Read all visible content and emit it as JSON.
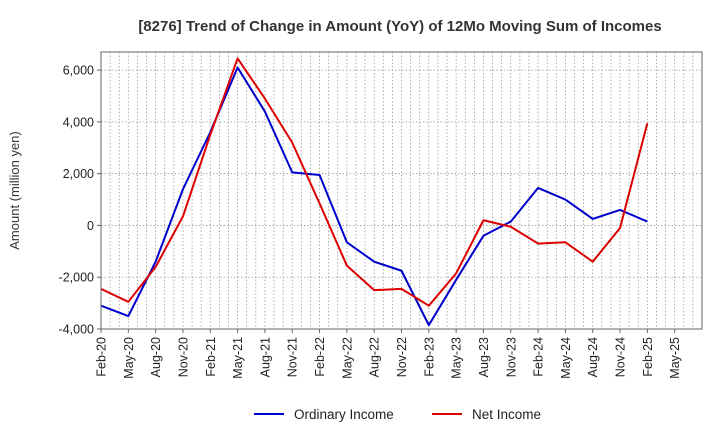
{
  "chart_data": {
    "type": "line",
    "title": "[8276]  Trend of Change in Amount (YoY) of 12Mo Moving Sum of Incomes",
    "xlabel": "",
    "ylabel": "Amount (million yen)",
    "ylim": [
      -4000,
      6700
    ],
    "yticks": [
      -4000,
      -2000,
      0,
      2000,
      4000,
      6000
    ],
    "ytick_labels": [
      "-4,000",
      "-2,000",
      "0",
      "2,000",
      "4,000",
      "6,000"
    ],
    "categories": [
      "Feb-20",
      "May-20",
      "Aug-20",
      "Nov-20",
      "Feb-21",
      "May-21",
      "Aug-21",
      "Nov-21",
      "Feb-22",
      "May-22",
      "Aug-22",
      "Nov-22",
      "Feb-23",
      "May-23",
      "Aug-23",
      "Nov-23",
      "Feb-24",
      "May-24",
      "Aug-24",
      "Nov-24",
      "Feb-25",
      "May-25"
    ],
    "grid": true,
    "legend_position": "bottom-center",
    "series": [
      {
        "name": "Ordinary Income",
        "color": "#0000cc",
        "values": [
          -3100,
          -3500,
          -1400,
          1400,
          3600,
          6100,
          4400,
          2050,
          1950,
          -650,
          -1400,
          -1750,
          -3850,
          -2100,
          -400,
          150,
          1450,
          1000,
          250,
          600,
          150,
          null
        ]
      },
      {
        "name": "Net Income",
        "color": "#dd0000",
        "values": [
          -2450,
          -2950,
          -1600,
          350,
          3500,
          6450,
          4900,
          3200,
          850,
          -1550,
          -2500,
          -2450,
          -3100,
          -1850,
          200,
          -50,
          -700,
          -650,
          -1400,
          -100,
          3950,
          null
        ]
      }
    ]
  }
}
